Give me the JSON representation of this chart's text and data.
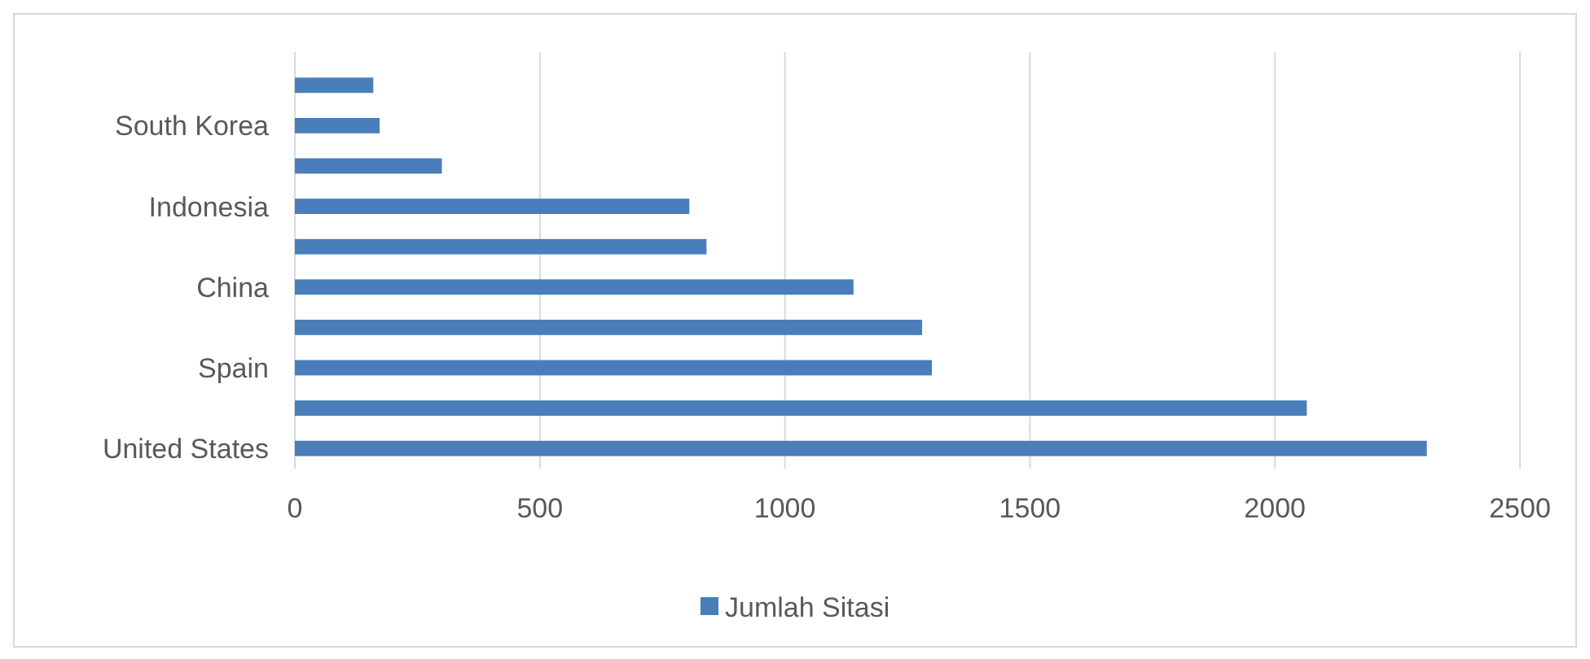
{
  "chart_data": {
    "type": "bar",
    "orientation": "horizontal",
    "categories": [
      null,
      "South Korea",
      null,
      "Indonesia",
      null,
      "China",
      null,
      "Spain",
      null,
      "United States"
    ],
    "series": [
      {
        "name": "Jumlah Sitasi",
        "color": "#4a7ebb",
        "values": [
          160,
          173,
          300,
          805,
          840,
          1140,
          1280,
          1300,
          2065,
          2310
        ]
      }
    ],
    "xlim": [
      0,
      2500
    ],
    "xticks": [
      0,
      500,
      1000,
      1500,
      2000,
      2500
    ],
    "grid": "x",
    "legend": "bottom"
  }
}
